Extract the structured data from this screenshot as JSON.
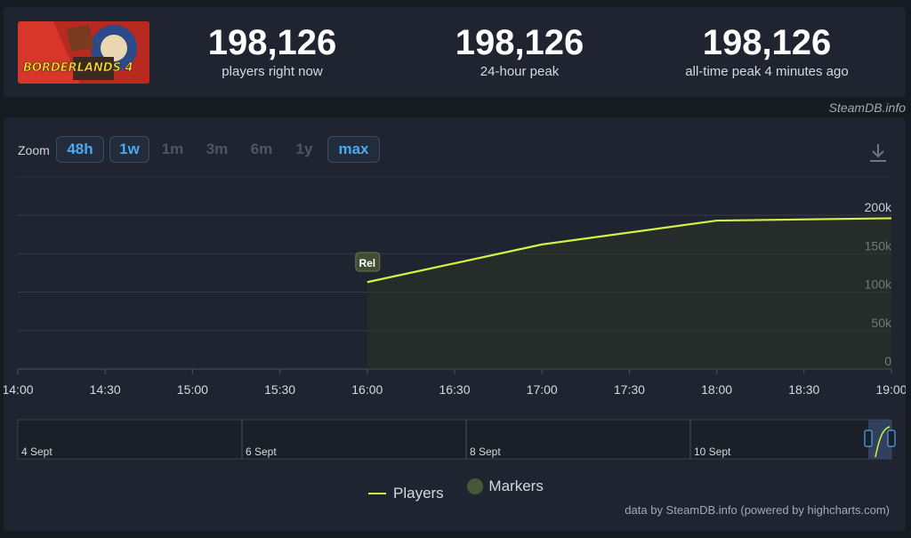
{
  "stats": [
    {
      "value": "198,126",
      "label": "players right now"
    },
    {
      "value": "198,126",
      "label": "24-hour peak"
    },
    {
      "value": "198,126",
      "label": "all-time peak 4 minutes ago"
    }
  ],
  "game": {
    "logo_text": "BORDERLANDS 4"
  },
  "credit_top": "SteamDB.info",
  "zoom": {
    "label": "Zoom",
    "options": [
      {
        "label": "48h",
        "active": true
      },
      {
        "label": "1w",
        "active": true
      },
      {
        "label": "1m",
        "active": false
      },
      {
        "label": "3m",
        "active": false
      },
      {
        "label": "6m",
        "active": false
      },
      {
        "label": "1y",
        "active": false
      },
      {
        "label": "max",
        "active": true
      }
    ]
  },
  "chart_data": {
    "type": "line",
    "series": [
      {
        "name": "Players",
        "color": "#d4f243",
        "x": [
          "16:00",
          "17:00",
          "18:00",
          "19:00"
        ],
        "values": [
          113000,
          162000,
          193000,
          196000
        ]
      }
    ],
    "x_ticks": [
      "14:00",
      "14:30",
      "15:00",
      "15:30",
      "16:00",
      "16:30",
      "17:00",
      "17:30",
      "18:00",
      "18:30",
      "19:00"
    ],
    "y_ticks": [
      "0",
      "50k",
      "100k",
      "150k",
      "200k"
    ],
    "ylim": [
      0,
      200000
    ],
    "grid": true,
    "markers": [
      {
        "label": "Rel",
        "x": "16:00"
      }
    ],
    "navigator_labels": [
      "4 Sept",
      "6 Sept",
      "8 Sept",
      "10 Sept"
    ],
    "legend": [
      {
        "name": "Players",
        "color": "#d4f243"
      },
      {
        "name": "Markers",
        "color": "#47573a"
      }
    ],
    "legend_position": "bottom-center"
  },
  "credit_bottom": "data by SteamDB.info (powered by highcharts.com)"
}
